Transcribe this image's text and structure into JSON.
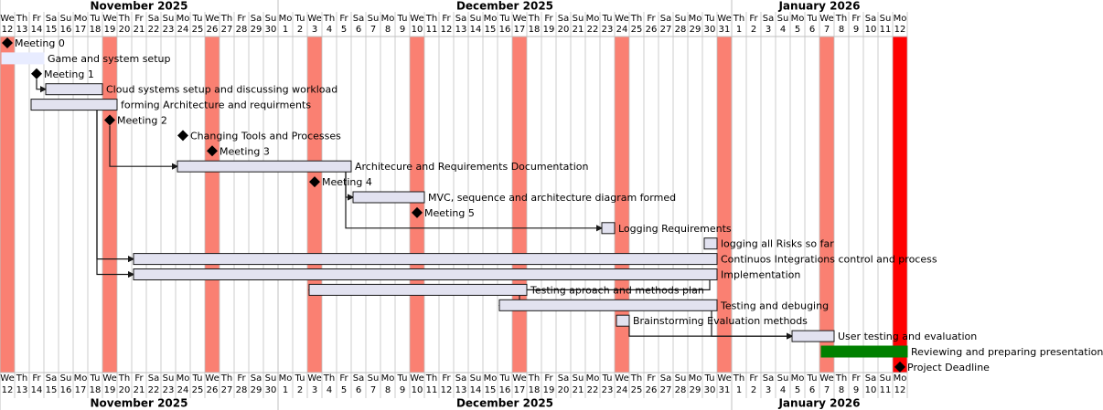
{
  "chart_data": {
    "type": "gantt",
    "xlim": [
      "2025-11-12",
      "2026-01-13"
    ],
    "months": [
      {
        "label": "November 2025",
        "start": "2025-11-12",
        "end": "2025-12-01"
      },
      {
        "label": "December 2025",
        "start": "2025-12-01",
        "end": "2026-01-01"
      },
      {
        "label": "January 2026",
        "start": "2026-01-01",
        "end": "2026-01-13"
      }
    ],
    "weekdays": [
      "We",
      "Th",
      "Fr",
      "Sa",
      "Su",
      "Mo",
      "Tu",
      "We",
      "Th",
      "Fr",
      "Sa",
      "Su",
      "Mo",
      "Tu",
      "We",
      "Th",
      "Fr",
      "Sa",
      "Su",
      "Mo",
      "Tu",
      "We",
      "Th",
      "Fr",
      "Sa",
      "Su",
      "Mo",
      "Tu",
      "We",
      "Th",
      "Fr",
      "Sa",
      "Su",
      "Mo",
      "Tu",
      "We",
      "Th",
      "Fr",
      "Sa",
      "Su",
      "Mo",
      "Tu",
      "We",
      "Th",
      "Fr",
      "Sa",
      "Su",
      "Mo",
      "Tu",
      "We",
      "Th",
      "Fr",
      "Sa",
      "Su",
      "Mo",
      "Tu",
      "We",
      "Th",
      "Fr",
      "Sa",
      "Su",
      "Mo"
    ],
    "days": [
      12,
      13,
      14,
      15,
      16,
      17,
      18,
      19,
      20,
      21,
      22,
      23,
      24,
      25,
      26,
      27,
      28,
      29,
      30,
      1,
      2,
      3,
      4,
      5,
      6,
      7,
      8,
      9,
      10,
      11,
      12,
      13,
      14,
      15,
      16,
      17,
      18,
      19,
      20,
      21,
      22,
      23,
      24,
      25,
      26,
      27,
      28,
      29,
      30,
      31,
      1,
      2,
      3,
      4,
      5,
      6,
      7,
      8,
      9,
      10,
      11,
      12
    ],
    "highlights": [
      {
        "date": "2025-11-12",
        "color": "#fa8072"
      },
      {
        "date": "2025-11-19",
        "color": "#fa8072"
      },
      {
        "date": "2025-11-26",
        "color": "#fa8072"
      },
      {
        "date": "2025-12-03",
        "color": "#fa8072"
      },
      {
        "date": "2025-12-10",
        "color": "#fa8072"
      },
      {
        "date": "2025-12-17",
        "color": "#fa8072"
      },
      {
        "date": "2025-12-24",
        "color": "#fa8072"
      },
      {
        "date": "2025-12-31",
        "color": "#fa8072"
      },
      {
        "date": "2026-01-07",
        "color": "#fa8072"
      },
      {
        "date": "2026-01-12",
        "color": "#ff0000"
      }
    ],
    "bar_color": "#e2e2f0",
    "tasks": [
      {
        "name": "Meeting 0",
        "date": "2025-11-12"
      },
      {
        "name": "Game and system setup",
        "start": "2025-11-12",
        "end": "2025-11-15",
        "color": "#e8ecff"
      },
      {
        "name": "Meeting 1",
        "date": "2025-11-14"
      },
      {
        "name": "Cloud systems setup and discussing workload",
        "start": "2025-11-15",
        "end": "2025-11-19"
      },
      {
        "name": "forming Architecture and requirments",
        "start": "2025-11-14",
        "end": "2025-11-20"
      },
      {
        "name": "Meeting 2",
        "date": "2025-11-19"
      },
      {
        "name": "Changing Tools and Processes",
        "date": "2025-11-24"
      },
      {
        "name": "Meeting 3",
        "date": "2025-11-26"
      },
      {
        "name": "Architecure and Requirements Documentation",
        "start": "2025-11-24",
        "end": "2025-12-06"
      },
      {
        "name": "Meeting 4",
        "date": "2025-12-03"
      },
      {
        "name": "MVC, sequence and architecture diagram formed",
        "start": "2025-12-06",
        "end": "2025-12-11"
      },
      {
        "name": "Meeting 5",
        "date": "2025-12-10"
      },
      {
        "name": "Logging Requirements",
        "start": "2025-12-23",
        "end": "2025-12-24"
      },
      {
        "name": "logging all Risks so far",
        "start": "2025-12-30",
        "end": "2025-12-31"
      },
      {
        "name": "Continuos Integrations control and process",
        "start": "2025-11-21",
        "end": "2025-12-31"
      },
      {
        "name": "Implementation",
        "start": "2025-11-21",
        "end": "2025-12-31"
      },
      {
        "name": "Testing aproach and methods plan",
        "start": "2025-12-03",
        "end": "2025-12-18"
      },
      {
        "name": "Testing and debuging",
        "start": "2025-12-16",
        "end": "2025-12-31"
      },
      {
        "name": "Brainstorming Evaluation methods",
        "start": "2025-12-24",
        "end": "2025-12-25"
      },
      {
        "name": "User testing and evaluation",
        "start": "2026-01-05",
        "end": "2026-01-08"
      },
      {
        "name": "Reviewing and preparing presentation",
        "start": "2026-01-07",
        "end": "2026-01-13",
        "color": "#008000"
      },
      {
        "name": "Project Deadline",
        "date": "2026-01-12"
      }
    ]
  }
}
